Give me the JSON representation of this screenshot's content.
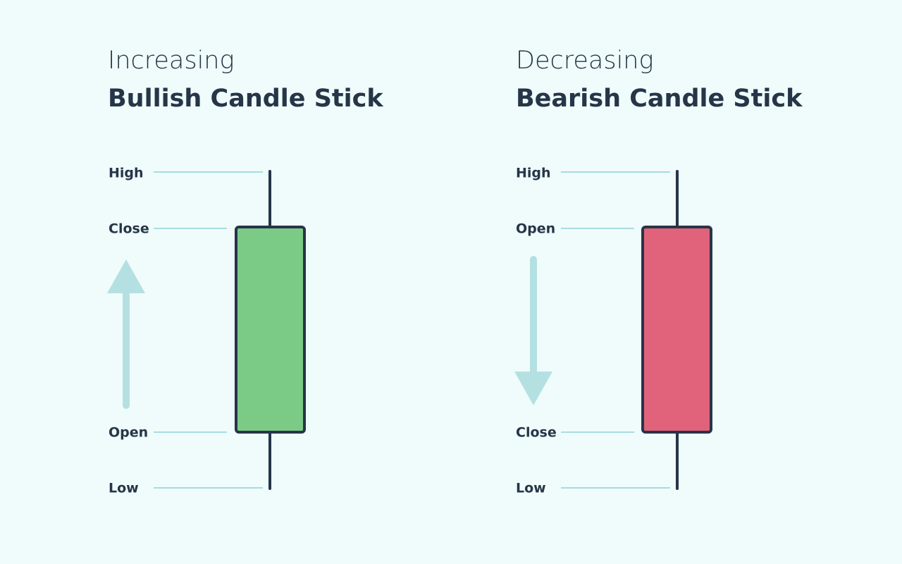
{
  "panels": [
    {
      "kicker": "Increasing",
      "title": "Bullish Candle Stick",
      "labels": [
        "High",
        "Close",
        "Open",
        "Low"
      ]
    },
    {
      "kicker": "Decreasing",
      "title": "Bearish Candle Stick",
      "labels": [
        "High",
        "Open",
        "Close",
        "Low"
      ]
    }
  ]
}
